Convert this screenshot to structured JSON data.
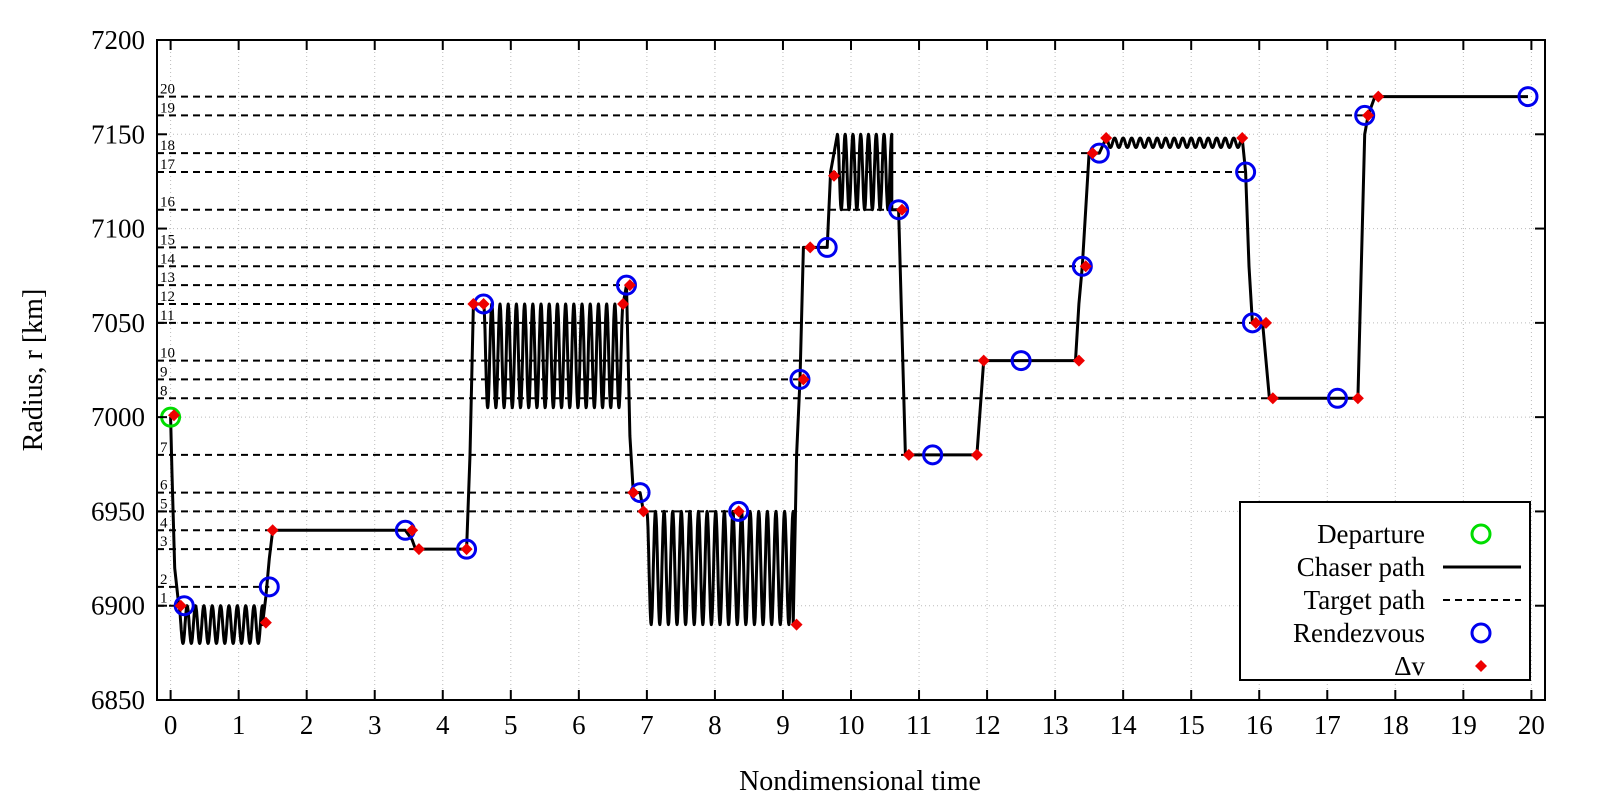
{
  "chart_data": {
    "type": "line",
    "title": "",
    "xlabel": "Nondimensional time",
    "ylabel": "Radius, r [km]",
    "xlim": [
      -0.2,
      20.2
    ],
    "ylim": [
      6850,
      7200
    ],
    "xticks": [
      0,
      1,
      2,
      3,
      4,
      5,
      6,
      7,
      8,
      9,
      10,
      11,
      12,
      13,
      14,
      15,
      16,
      17,
      18,
      19,
      20
    ],
    "yticks": [
      6850,
      6900,
      6950,
      7000,
      7050,
      7100,
      7150,
      7200
    ],
    "grid": true,
    "legend_position": "bottom-right",
    "colors": {
      "departure": "#00dd00",
      "chaser": "#000000",
      "target": "#000000",
      "rendezvous": "#0000ee",
      "deltav": "#ee0000"
    },
    "legend": [
      {
        "label": "Departure",
        "symbol": "open-circle",
        "color": "#00dd00"
      },
      {
        "label": "Chaser path",
        "symbol": "solid-line",
        "color": "#000000"
      },
      {
        "label": "Target path",
        "symbol": "dashed-line",
        "color": "#000000"
      },
      {
        "label": "Rendezvous",
        "symbol": "open-circle",
        "color": "#0000ee"
      },
      {
        "label": "Δv",
        "symbol": "diamond",
        "color": "#ee0000"
      }
    ],
    "targets": [
      {
        "id": "1",
        "r": 6900,
        "t_end": 0.2
      },
      {
        "id": "2",
        "r": 6910,
        "t_end": 1.45
      },
      {
        "id": "3",
        "r": 6930,
        "t_end": 4.35
      },
      {
        "id": "4",
        "r": 6940,
        "t_end": 3.45
      },
      {
        "id": "5",
        "r": 6950,
        "t_end": 8.35
      },
      {
        "id": "6",
        "r": 6960,
        "t_end": 6.9
      },
      {
        "id": "7",
        "r": 6980,
        "t_end": 11.2
      },
      {
        "id": "8",
        "r": 7010,
        "t_end": 17.15
      },
      {
        "id": "9",
        "r": 7020,
        "t_end": 9.25
      },
      {
        "id": "10",
        "r": 7030,
        "t_end": 12.5
      },
      {
        "id": "11",
        "r": 7050,
        "t_end": 15.9
      },
      {
        "id": "12",
        "r": 7060,
        "t_end": 4.6
      },
      {
        "id": "13",
        "r": 7070,
        "t_end": 6.7
      },
      {
        "id": "14",
        "r": 7080,
        "t_end": 13.4
      },
      {
        "id": "15",
        "r": 7090,
        "t_end": 9.65
      },
      {
        "id": "16",
        "r": 7110,
        "t_end": 10.7
      },
      {
        "id": "17",
        "r": 7130,
        "t_end": 15.8
      },
      {
        "id": "18",
        "r": 7140,
        "t_end": 13.65
      },
      {
        "id": "19",
        "r": 7160,
        "t_end": 17.55
      },
      {
        "id": "20",
        "r": 7170,
        "t_end": 19.95
      }
    ],
    "chaser_path": [
      {
        "kind": "line",
        "pts": [
          [
            0,
            7000
          ],
          [
            0.02,
            6970
          ],
          [
            0.06,
            6920
          ],
          [
            0.12,
            6900
          ]
        ]
      },
      {
        "kind": "osc",
        "t0": 0.12,
        "t1": 1.35,
        "lo": 6880,
        "hi": 6900,
        "cycles": 10
      },
      {
        "kind": "line",
        "pts": [
          [
            1.35,
            6890
          ],
          [
            1.4,
            6905
          ],
          [
            1.45,
            6925
          ],
          [
            1.5,
            6940
          ],
          [
            3.45,
            6940
          ],
          [
            3.55,
            6935
          ],
          [
            3.6,
            6930
          ],
          [
            4.35,
            6930
          ],
          [
            4.4,
            6980
          ],
          [
            4.45,
            7060
          ],
          [
            4.6,
            7060
          ]
        ]
      },
      {
        "kind": "osc",
        "t0": 4.6,
        "t1": 6.65,
        "lo": 7005,
        "hi": 7060,
        "cycles": 17
      },
      {
        "kind": "line",
        "pts": [
          [
            6.65,
            7060
          ],
          [
            6.7,
            7070
          ],
          [
            6.75,
            6990
          ],
          [
            6.8,
            6960
          ],
          [
            6.9,
            6960
          ],
          [
            6.95,
            6950
          ],
          [
            7.0,
            6950
          ]
        ]
      },
      {
        "kind": "osc",
        "t0": 7.0,
        "t1": 9.15,
        "lo": 6890,
        "hi": 6950,
        "cycles": 17
      },
      {
        "kind": "line",
        "pts": [
          [
            9.15,
            6890
          ],
          [
            9.2,
            6980
          ],
          [
            9.25,
            7020
          ],
          [
            9.3,
            7090
          ],
          [
            9.65,
            7090
          ],
          [
            9.7,
            7130
          ],
          [
            9.8,
            7150
          ]
        ]
      },
      {
        "kind": "osc",
        "t0": 9.8,
        "t1": 10.6,
        "lo": 7110,
        "hi": 7150,
        "cycles": 7
      },
      {
        "kind": "line",
        "pts": [
          [
            10.6,
            7110
          ],
          [
            10.7,
            7110
          ],
          [
            10.8,
            6980
          ],
          [
            11.85,
            6980
          ],
          [
            11.95,
            7030
          ],
          [
            13.3,
            7030
          ],
          [
            13.35,
            7060
          ],
          [
            13.4,
            7080
          ],
          [
            13.5,
            7140
          ],
          [
            13.65,
            7140
          ],
          [
            13.75,
            7148
          ]
        ]
      },
      {
        "kind": "osc",
        "t0": 13.75,
        "t1": 15.75,
        "lo": 7143,
        "hi": 7148,
        "cycles": 16
      },
      {
        "kind": "line",
        "pts": [
          [
            15.75,
            7148
          ],
          [
            15.8,
            7130
          ],
          [
            15.85,
            7080
          ],
          [
            15.9,
            7050
          ],
          [
            16.05,
            7050
          ],
          [
            16.15,
            7010
          ],
          [
            17.45,
            7010
          ],
          [
            17.55,
            7150
          ],
          [
            17.6,
            7160
          ],
          [
            17.7,
            7170
          ],
          [
            19.95,
            7170
          ]
        ]
      }
    ],
    "departure": [
      {
        "t": 0.0,
        "r": 7000
      }
    ],
    "rendezvous": [
      {
        "t": 0.2,
        "r": 6900
      },
      {
        "t": 1.45,
        "r": 6910
      },
      {
        "t": 3.45,
        "r": 6940
      },
      {
        "t": 4.35,
        "r": 6930
      },
      {
        "t": 4.6,
        "r": 7060
      },
      {
        "t": 6.7,
        "r": 7070
      },
      {
        "t": 6.9,
        "r": 6960
      },
      {
        "t": 8.35,
        "r": 6950
      },
      {
        "t": 9.25,
        "r": 7020
      },
      {
        "t": 9.65,
        "r": 7090
      },
      {
        "t": 10.7,
        "r": 7110
      },
      {
        "t": 11.2,
        "r": 6980
      },
      {
        "t": 12.5,
        "r": 7030
      },
      {
        "t": 13.4,
        "r": 7080
      },
      {
        "t": 13.65,
        "r": 7140
      },
      {
        "t": 15.8,
        "r": 7130
      },
      {
        "t": 15.9,
        "r": 7050
      },
      {
        "t": 17.15,
        "r": 7010
      },
      {
        "t": 17.55,
        "r": 7160
      },
      {
        "t": 19.95,
        "r": 7170
      }
    ],
    "delta_v": [
      {
        "t": 0.05,
        "r": 7001
      },
      {
        "t": 0.15,
        "r": 6900
      },
      {
        "t": 1.4,
        "r": 6891
      },
      {
        "t": 1.5,
        "r": 6940
      },
      {
        "t": 3.55,
        "r": 6940
      },
      {
        "t": 3.65,
        "r": 6930
      },
      {
        "t": 4.35,
        "r": 6930
      },
      {
        "t": 4.45,
        "r": 7060
      },
      {
        "t": 4.6,
        "r": 7060
      },
      {
        "t": 6.65,
        "r": 7060
      },
      {
        "t": 6.75,
        "r": 7070
      },
      {
        "t": 6.8,
        "r": 6960
      },
      {
        "t": 6.95,
        "r": 6950
      },
      {
        "t": 8.35,
        "r": 6950
      },
      {
        "t": 9.2,
        "r": 6890
      },
      {
        "t": 9.3,
        "r": 7020
      },
      {
        "t": 9.4,
        "r": 7090
      },
      {
        "t": 9.75,
        "r": 7128
      },
      {
        "t": 10.75,
        "r": 7110
      },
      {
        "t": 10.85,
        "r": 6980
      },
      {
        "t": 11.85,
        "r": 6980
      },
      {
        "t": 11.95,
        "r": 7030
      },
      {
        "t": 13.35,
        "r": 7030
      },
      {
        "t": 13.45,
        "r": 7080
      },
      {
        "t": 13.55,
        "r": 7140
      },
      {
        "t": 13.75,
        "r": 7148
      },
      {
        "t": 15.75,
        "r": 7148
      },
      {
        "t": 15.95,
        "r": 7050
      },
      {
        "t": 16.1,
        "r": 7050
      },
      {
        "t": 16.2,
        "r": 7010
      },
      {
        "t": 17.45,
        "r": 7010
      },
      {
        "t": 17.6,
        "r": 7160
      },
      {
        "t": 17.75,
        "r": 7170
      }
    ]
  }
}
